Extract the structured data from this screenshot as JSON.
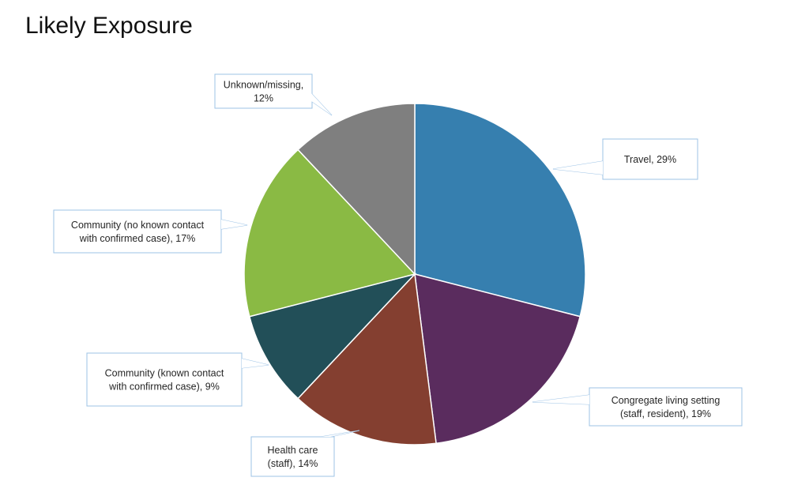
{
  "page": {
    "title": "Likely Exposure"
  },
  "chart_data": {
    "type": "pie",
    "title": "Likely Exposure",
    "start_angle_deg": 0,
    "direction": "clockwise",
    "slices": [
      {
        "label": "Travel",
        "value": 29,
        "display": [
          "Travel, 29%"
        ],
        "color": "#367FAF"
      },
      {
        "label": "Congregate living setting (staff, resident)",
        "value": 19,
        "display": [
          "Congregate living setting",
          "(staff, resident), 19%"
        ],
        "color": "#5A2C5E"
      },
      {
        "label": "Health care (staff)",
        "value": 14,
        "display": [
          "Health care",
          "(staff), 14%"
        ],
        "color": "#843F30"
      },
      {
        "label": "Community (known contact with confirmed case)",
        "value": 9,
        "display": [
          "Community (known contact",
          "with confirmed case), 9%"
        ],
        "color": "#224F58"
      },
      {
        "label": "Community (no known contact with confirmed case)",
        "value": 17,
        "display": [
          "Community (no known contact",
          "with confirmed case), 17%"
        ],
        "color": "#8ABA44"
      },
      {
        "label": "Unknown/missing",
        "value": 12,
        "display": [
          "Unknown/missing,",
          "12%"
        ],
        "color": "#7F7F7F"
      }
    ],
    "callout_border_color": "#9DC3E6"
  }
}
